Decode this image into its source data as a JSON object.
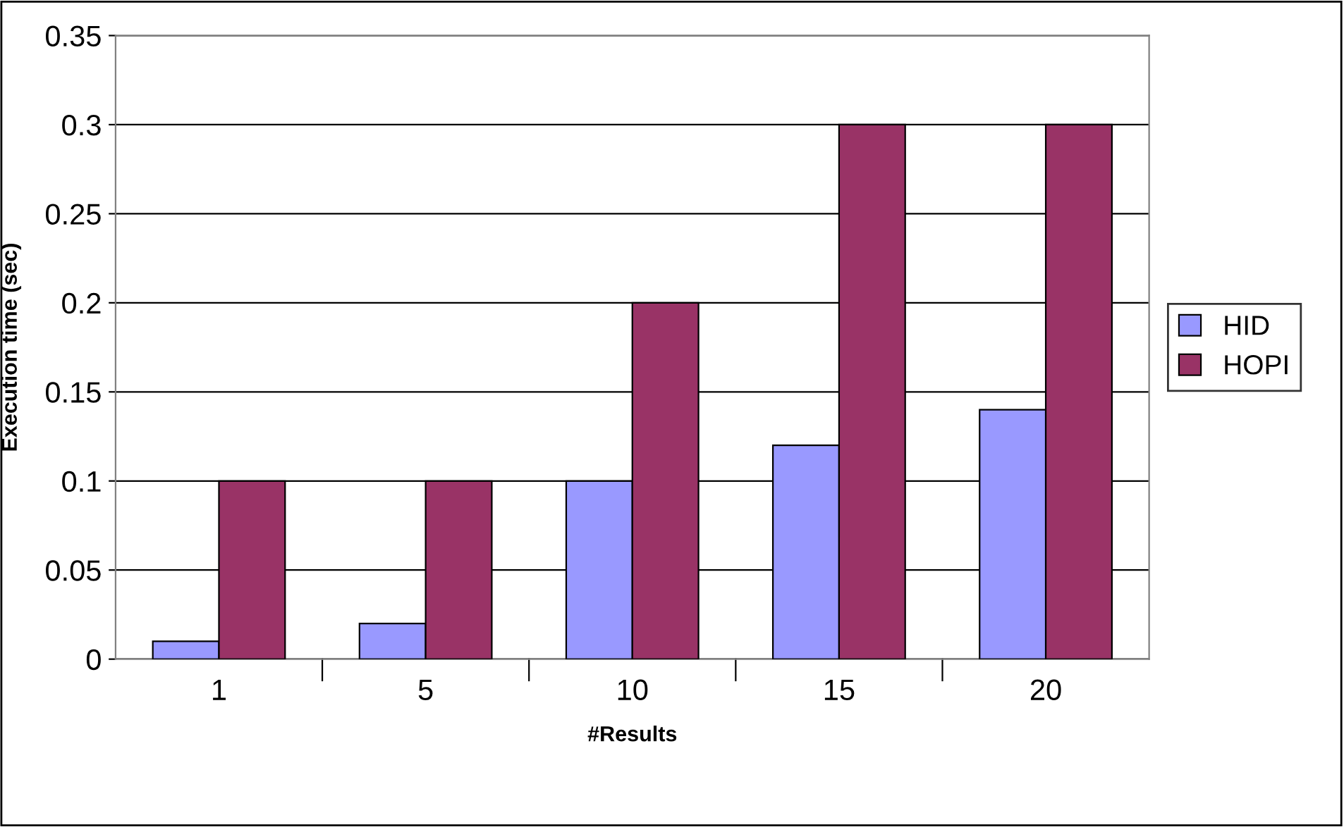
{
  "chart_data": {
    "type": "bar",
    "xlabel": "#Results",
    "ylabel": "Execution time (sec)",
    "categories": [
      "1",
      "5",
      "10",
      "15",
      "20"
    ],
    "series": [
      {
        "name": "HID",
        "color": "#9999ff",
        "values": [
          0.01,
          0.02,
          0.1,
          0.12,
          0.14
        ]
      },
      {
        "name": "HOPI",
        "color": "#993366",
        "values": [
          0.1,
          0.1,
          0.2,
          0.3,
          0.3
        ]
      }
    ],
    "ylim": [
      0,
      0.35
    ],
    "yticks": [
      0,
      0.05,
      0.1,
      0.15,
      0.2,
      0.25,
      0.3,
      0.35
    ],
    "grid": "y",
    "legend": "right"
  }
}
